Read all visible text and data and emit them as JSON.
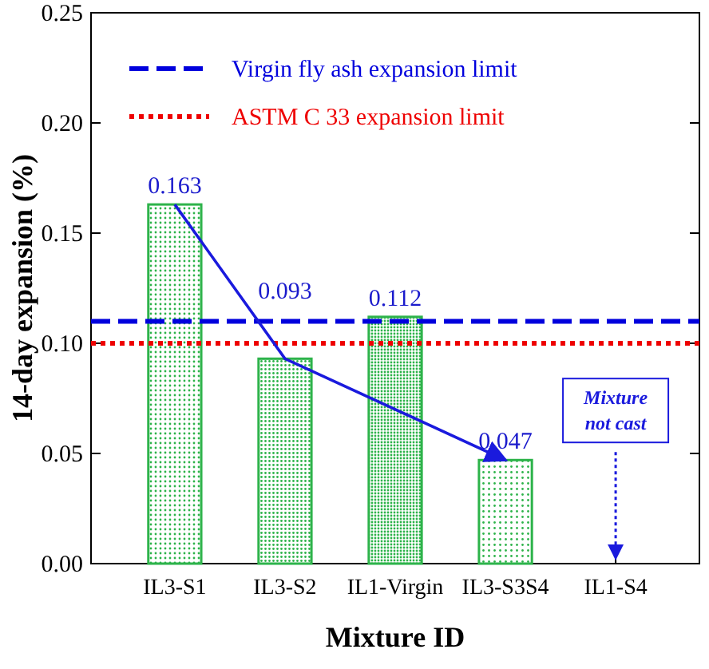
{
  "chart_data": {
    "type": "bar",
    "xlabel": "Mixture ID",
    "ylabel": "14-day expansion (%)",
    "categories": [
      "IL3-S1",
      "IL3-S2",
      "IL1-Virgin",
      "IL3-S3S4",
      "IL1-S4"
    ],
    "values": [
      0.163,
      0.093,
      0.112,
      0.047,
      null
    ],
    "color": "#2db34a",
    "data_labels": true,
    "ylim": [
      0,
      0.25
    ],
    "yticks": [
      {
        "value": 0,
        "label": "0.00"
      },
      {
        "value": 0.05,
        "label": "0.05"
      },
      {
        "value": 0.1,
        "label": "0.10"
      },
      {
        "value": 0.15,
        "label": "0.15"
      },
      {
        "value": 0.2,
        "label": "0.20"
      },
      {
        "value": 0.25,
        "label": "0.25"
      }
    ],
    "ref_lines": [
      {
        "axis": "y",
        "value": 0.11,
        "label": "Virgin fly ash expansion limit",
        "color": "#0000dd",
        "line_style": "dashed"
      },
      {
        "axis": "y",
        "value": 0.1,
        "label": "ASTM C 33 expansion limit",
        "color": "#ee0000",
        "line_style": "dotted"
      }
    ],
    "legend": "top",
    "grid": false,
    "annotations": [
      "Mixture not cast"
    ]
  }
}
